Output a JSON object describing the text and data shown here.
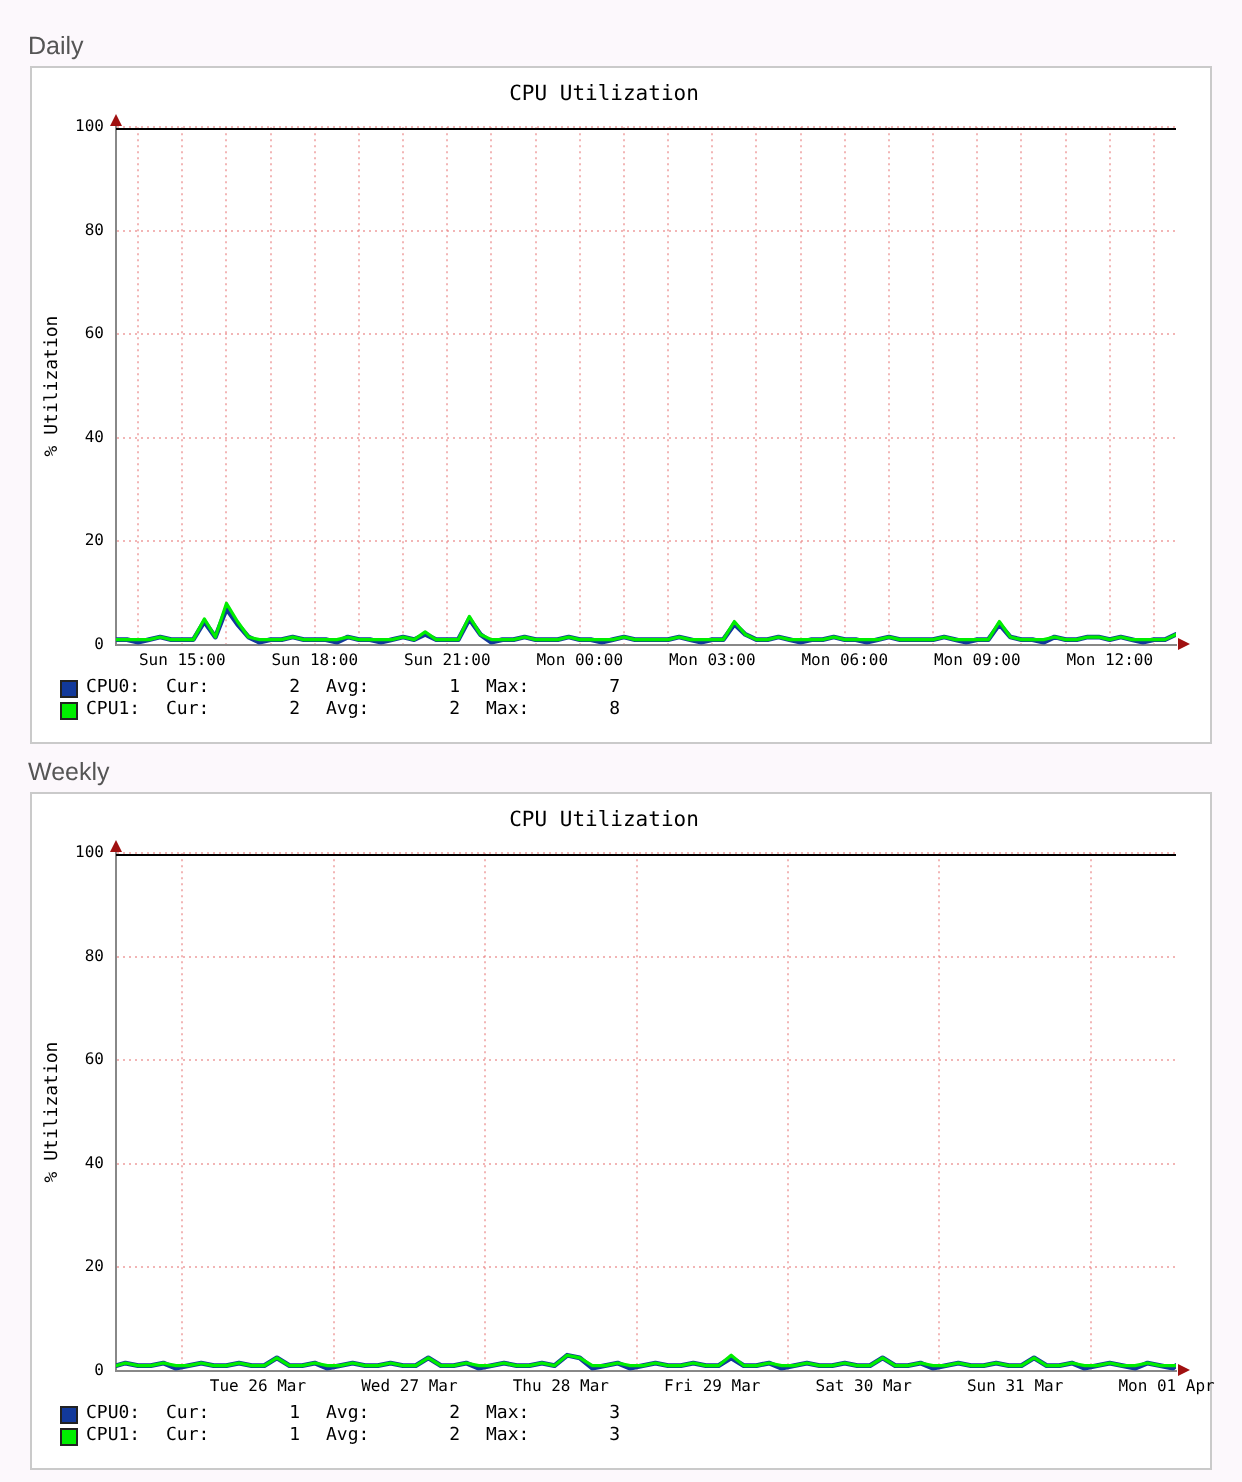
{
  "chart_data": [
    {
      "type": "line",
      "subtitle": "Daily",
      "title": "CPU Utilization",
      "ylabel": "% Utilization",
      "x": [
        "--03-31T13:30",
        "--03-31T13:45",
        "--03-31T14:00",
        "--03-31T14:15",
        "--03-31T14:30",
        "--03-31T14:45",
        "--03-31T15:00",
        "--03-31T15:15",
        "--03-31T15:30",
        "--03-31T15:45",
        "--03-31T16:00",
        "--03-31T16:15",
        "--03-31T16:30",
        "--03-31T16:45",
        "--03-31T17:00",
        "--03-31T17:15",
        "--03-31T17:30",
        "--03-31T17:45",
        "--03-31T18:00",
        "--03-31T18:15",
        "--03-31T18:30",
        "--03-31T18:45",
        "--03-31T19:00",
        "--03-31T19:15",
        "--03-31T19:30",
        "--03-31T19:45",
        "--03-31T20:00",
        "--03-31T20:15",
        "--03-31T20:30",
        "--03-31T20:45",
        "--03-31T21:00",
        "--03-31T21:15",
        "--03-31T21:30",
        "--03-31T21:45",
        "--03-31T22:00",
        "--03-31T22:15",
        "--03-31T22:30",
        "--03-31T22:45",
        "--03-31T23:00",
        "--03-31T23:15",
        "--03-31T23:30",
        "--03-31T23:45",
        "--04-01T00:00",
        "--04-01T00:15",
        "--04-01T00:30",
        "--04-01T00:45",
        "--04-01T01:00",
        "--04-01T01:15",
        "--04-01T01:30",
        "--04-01T01:45",
        "--04-01T02:00",
        "--04-01T02:15",
        "--04-01T02:30",
        "--04-01T02:45",
        "--04-01T03:00",
        "--04-01T03:15",
        "--04-01T03:30",
        "--04-01T03:45",
        "--04-01T04:00",
        "--04-01T04:15",
        "--04-01T04:30",
        "--04-01T04:45",
        "--04-01T05:00",
        "--04-01T05:15",
        "--04-01T05:30",
        "--04-01T05:45",
        "--04-01T06:00",
        "--04-01T06:15",
        "--04-01T06:30",
        "--04-01T06:45",
        "--04-01T07:00",
        "--04-01T07:15",
        "--04-01T07:30",
        "--04-01T07:45",
        "--04-01T08:00",
        "--04-01T08:15",
        "--04-01T08:30",
        "--04-01T08:45",
        "--04-01T09:00",
        "--04-01T09:15",
        "--04-01T09:30",
        "--04-01T09:45",
        "--04-01T10:00",
        "--04-01T10:15",
        "--04-01T10:30",
        "--04-01T10:45",
        "--04-01T11:00",
        "--04-01T11:15",
        "--04-01T11:30",
        "--04-01T11:45",
        "--04-01T12:00",
        "--04-01T12:15",
        "--04-01T12:30",
        "--04-01T12:45",
        "--04-01T13:00",
        "--04-01T13:15",
        "--04-01T13:30"
      ],
      "xlim": [
        "--03-31T13:30",
        "--04-01T13:30"
      ],
      "xticks": [
        {
          "value": "--03-31T14:00",
          "label": null
        },
        {
          "value": "--03-31T15:00",
          "label": "Sun 15:00"
        },
        {
          "value": "--03-31T16:00",
          "label": null
        },
        {
          "value": "--03-31T17:00",
          "label": null
        },
        {
          "value": "--03-31T18:00",
          "label": "Sun 18:00"
        },
        {
          "value": "--03-31T19:00",
          "label": null
        },
        {
          "value": "--03-31T20:00",
          "label": null
        },
        {
          "value": "--03-31T21:00",
          "label": "Sun 21:00"
        },
        {
          "value": "--03-31T22:00",
          "label": null
        },
        {
          "value": "--03-31T23:00",
          "label": null
        },
        {
          "value": "--04-01T00:00",
          "label": "Mon 00:00"
        },
        {
          "value": "--04-01T01:00",
          "label": null
        },
        {
          "value": "--04-01T02:00",
          "label": null
        },
        {
          "value": "--04-01T03:00",
          "label": "Mon 03:00"
        },
        {
          "value": "--04-01T04:00",
          "label": null
        },
        {
          "value": "--04-01T05:00",
          "label": null
        },
        {
          "value": "--04-01T06:00",
          "label": "Mon 06:00"
        },
        {
          "value": "--04-01T07:00",
          "label": null
        },
        {
          "value": "--04-01T08:00",
          "label": null
        },
        {
          "value": "--04-01T09:00",
          "label": "Mon 09:00"
        },
        {
          "value": "--04-01T10:00",
          "label": null
        },
        {
          "value": "--04-01T11:00",
          "label": null
        },
        {
          "value": "--04-01T12:00",
          "label": "Mon 12:00"
        },
        {
          "value": "--04-01T13:00",
          "label": null
        }
      ],
      "ylim": [
        0,
        100
      ],
      "yticks": [
        0,
        20,
        40,
        60,
        80,
        100
      ],
      "grid": true,
      "legend": "bottom left",
      "marker": "none",
      "ref_lines": [
        {
          "axis": "y",
          "value": 100,
          "color": "#000000"
        }
      ],
      "series": [
        {
          "name": "CPU0:",
          "color": "#12399b",
          "values": [
            1,
            1,
            0.5,
            1,
            1.5,
            1,
            1,
            1,
            4.5,
            1.5,
            7,
            4,
            1.5,
            0.5,
            1,
            1,
            1.5,
            1,
            1,
            1,
            0.5,
            1.5,
            1,
            1,
            0.5,
            1,
            1.5,
            1,
            2,
            1,
            1,
            1,
            5,
            2,
            0.5,
            1,
            1,
            1.5,
            1,
            1,
            1,
            1.5,
            1,
            1,
            0.5,
            1,
            1.5,
            1,
            1,
            1,
            1,
            1.5,
            1,
            0.5,
            1,
            1,
            4,
            2,
            1,
            1,
            1.5,
            1,
            0.5,
            1,
            1,
            1.5,
            1,
            1,
            0.5,
            1,
            1.5,
            1,
            1,
            1,
            1,
            1.5,
            1,
            0.5,
            1,
            1,
            4,
            1.5,
            1,
            1,
            0.5,
            1.5,
            1,
            1,
            1.5,
            1.5,
            1,
            1.5,
            1,
            0.5,
            1,
            1,
            2
          ]
        },
        {
          "name": "CPU1:",
          "color": "#00ee00",
          "values": [
            1,
            1,
            1,
            1,
            1.5,
            1,
            1,
            1,
            5,
            1.5,
            8,
            4.5,
            1.5,
            1,
            1,
            1,
            1.5,
            1,
            1,
            1,
            1,
            1.5,
            1,
            1,
            1,
            1,
            1.5,
            1,
            2.5,
            1,
            1,
            1,
            5.5,
            2,
            1,
            1,
            1,
            1.5,
            1,
            1,
            1,
            1.5,
            1,
            1,
            1,
            1,
            1.5,
            1,
            1,
            1,
            1,
            1.5,
            1,
            1,
            1,
            1,
            4.5,
            2,
            1,
            1,
            1.5,
            1,
            1,
            1,
            1,
            1.5,
            1,
            1,
            1,
            1,
            1.5,
            1,
            1,
            1,
            1,
            1.5,
            1,
            1,
            1,
            1,
            4.5,
            1.5,
            1,
            1,
            1,
            1.5,
            1,
            1,
            1.5,
            1.5,
            1,
            1.5,
            1,
            1,
            1,
            1,
            2
          ]
        }
      ],
      "annotations": [
        "Cur: 2",
        "Avg: 1",
        "Max: 7",
        "Cur: 2",
        "Avg: 2",
        "Max: 8"
      ]
    },
    {
      "type": "line",
      "subtitle": "Weekly",
      "title": "CPU Utilization",
      "ylabel": "% Utilization",
      "x": [
        "--03-25T13:30",
        "--03-25T15:00",
        "--03-25T17:00",
        "--03-25T19:00",
        "--03-25T21:00",
        "--03-25T23:00",
        "--03-26T01:00",
        "--03-26T03:00",
        "--03-26T05:00",
        "--03-26T07:00",
        "--03-26T09:00",
        "--03-26T11:00",
        "--03-26T13:00",
        "--03-26T15:00",
        "--03-26T17:00",
        "--03-26T19:00",
        "--03-26T21:00",
        "--03-26T23:00",
        "--03-27T01:00",
        "--03-27T03:00",
        "--03-27T05:00",
        "--03-27T07:00",
        "--03-27T09:00",
        "--03-27T11:00",
        "--03-27T13:00",
        "--03-27T15:00",
        "--03-27T17:00",
        "--03-27T19:00",
        "--03-27T21:00",
        "--03-27T23:00",
        "--03-28T01:00",
        "--03-28T03:00",
        "--03-28T05:00",
        "--03-28T07:00",
        "--03-28T09:00",
        "--03-28T11:00",
        "--03-28T13:00",
        "--03-28T15:00",
        "--03-28T17:00",
        "--03-28T19:00",
        "--03-28T21:00",
        "--03-28T23:00",
        "--03-29T01:00",
        "--03-29T03:00",
        "--03-29T05:00",
        "--03-29T07:00",
        "--03-29T09:00",
        "--03-29T11:00",
        "--03-29T13:00",
        "--03-29T15:00",
        "--03-29T17:00",
        "--03-29T19:00",
        "--03-29T21:00",
        "--03-29T23:00",
        "--03-30T01:00",
        "--03-30T03:00",
        "--03-30T05:00",
        "--03-30T07:00",
        "--03-30T09:00",
        "--03-30T11:00",
        "--03-30T13:00",
        "--03-30T15:00",
        "--03-30T17:00",
        "--03-30T19:00",
        "--03-30T21:00",
        "--03-30T23:00",
        "--03-31T01:00",
        "--03-31T03:00",
        "--03-31T05:00",
        "--03-31T07:00",
        "--03-31T09:00",
        "--03-31T11:00",
        "--03-31T13:00",
        "--03-31T15:00",
        "--03-31T17:00",
        "--03-31T19:00",
        "--03-31T21:00",
        "--03-31T23:00",
        "--04-01T01:00",
        "--04-01T03:00",
        "--04-01T05:00",
        "--04-01T07:00",
        "--04-01T09:00",
        "--04-01T11:00",
        "--04-01T13:00",
        "--04-01T13:30"
      ],
      "xlim": [
        "--03-25T13:30",
        "--04-01T13:30"
      ],
      "xticks": [
        {
          "value": "--03-26T00:00",
          "label": null
        },
        {
          "value": "--03-26T12:00",
          "label": "Tue 26 Mar"
        },
        {
          "value": "--03-27T00:00",
          "label": null
        },
        {
          "value": "--03-27T12:00",
          "label": "Wed 27 Mar"
        },
        {
          "value": "--03-28T00:00",
          "label": null
        },
        {
          "value": "--03-28T12:00",
          "label": "Thu 28 Mar"
        },
        {
          "value": "--03-29T00:00",
          "label": null
        },
        {
          "value": "--03-29T12:00",
          "label": "Fri 29 Mar"
        },
        {
          "value": "--03-30T00:00",
          "label": null
        },
        {
          "value": "--03-30T12:00",
          "label": "Sat 30 Mar"
        },
        {
          "value": "--03-31T00:00",
          "label": null
        },
        {
          "value": "--03-31T12:00",
          "label": "Sun 31 Mar"
        },
        {
          "value": "--04-01T00:00",
          "label": null
        },
        {
          "value": "--04-01T12:00",
          "label": "Mon 01 Apr"
        }
      ],
      "ylim": [
        0,
        100
      ],
      "yticks": [
        0,
        20,
        40,
        60,
        80,
        100
      ],
      "grid": true,
      "legend": "bottom left",
      "marker": "none",
      "ref_lines": [
        {
          "axis": "y",
          "value": 100,
          "color": "#000000"
        }
      ],
      "series": [
        {
          "name": "CPU0:",
          "color": "#12399b",
          "values": [
            1,
            1.5,
            1,
            1,
            1.5,
            0.5,
            1,
            1.5,
            1,
            1,
            1.5,
            1,
            1,
            2.5,
            1,
            1,
            1.5,
            0.5,
            1,
            1.5,
            1,
            1,
            1.5,
            1,
            1,
            2.5,
            1,
            1,
            1.5,
            0.5,
            1,
            1.5,
            1,
            1,
            1.5,
            1,
            3,
            2.5,
            0.5,
            1,
            1.5,
            0.5,
            1,
            1.5,
            1,
            1,
            1.5,
            1,
            1,
            2.5,
            1,
            1,
            1.5,
            0.5,
            1,
            1.5,
            1,
            1,
            1.5,
            1,
            1,
            2.5,
            1,
            1,
            1.5,
            0.5,
            1,
            1.5,
            1,
            1,
            1.5,
            1,
            1,
            2.5,
            1,
            1,
            1.5,
            0.5,
            1,
            1.5,
            1,
            0.5,
            1.5,
            1,
            0.5,
            1
          ]
        },
        {
          "name": "CPU1:",
          "color": "#00ee00",
          "values": [
            1,
            1.5,
            1,
            1,
            1.5,
            1,
            1,
            1.5,
            1,
            1,
            1.5,
            1,
            1,
            2.5,
            1,
            1,
            1.5,
            1,
            1,
            1.5,
            1,
            1,
            1.5,
            1,
            1,
            2.5,
            1,
            1,
            1.5,
            1,
            1,
            1.5,
            1,
            1,
            1.5,
            1,
            3,
            2.5,
            1,
            1,
            1.5,
            1,
            1,
            1.5,
            1,
            1,
            1.5,
            1,
            1,
            3,
            1,
            1,
            1.5,
            1,
            1,
            1.5,
            1,
            1,
            1.5,
            1,
            1,
            2.5,
            1,
            1,
            1.5,
            1,
            1,
            1.5,
            1,
            1,
            1.5,
            1,
            1,
            2.5,
            1,
            1,
            1.5,
            1,
            1,
            1.5,
            1,
            1,
            1.5,
            1,
            1,
            1
          ]
        }
      ],
      "annotations": [
        "Cur: 1",
        "Avg: 2",
        "Max: 3",
        "Cur: 1",
        "Avg: 2",
        "Max: 3"
      ]
    }
  ]
}
